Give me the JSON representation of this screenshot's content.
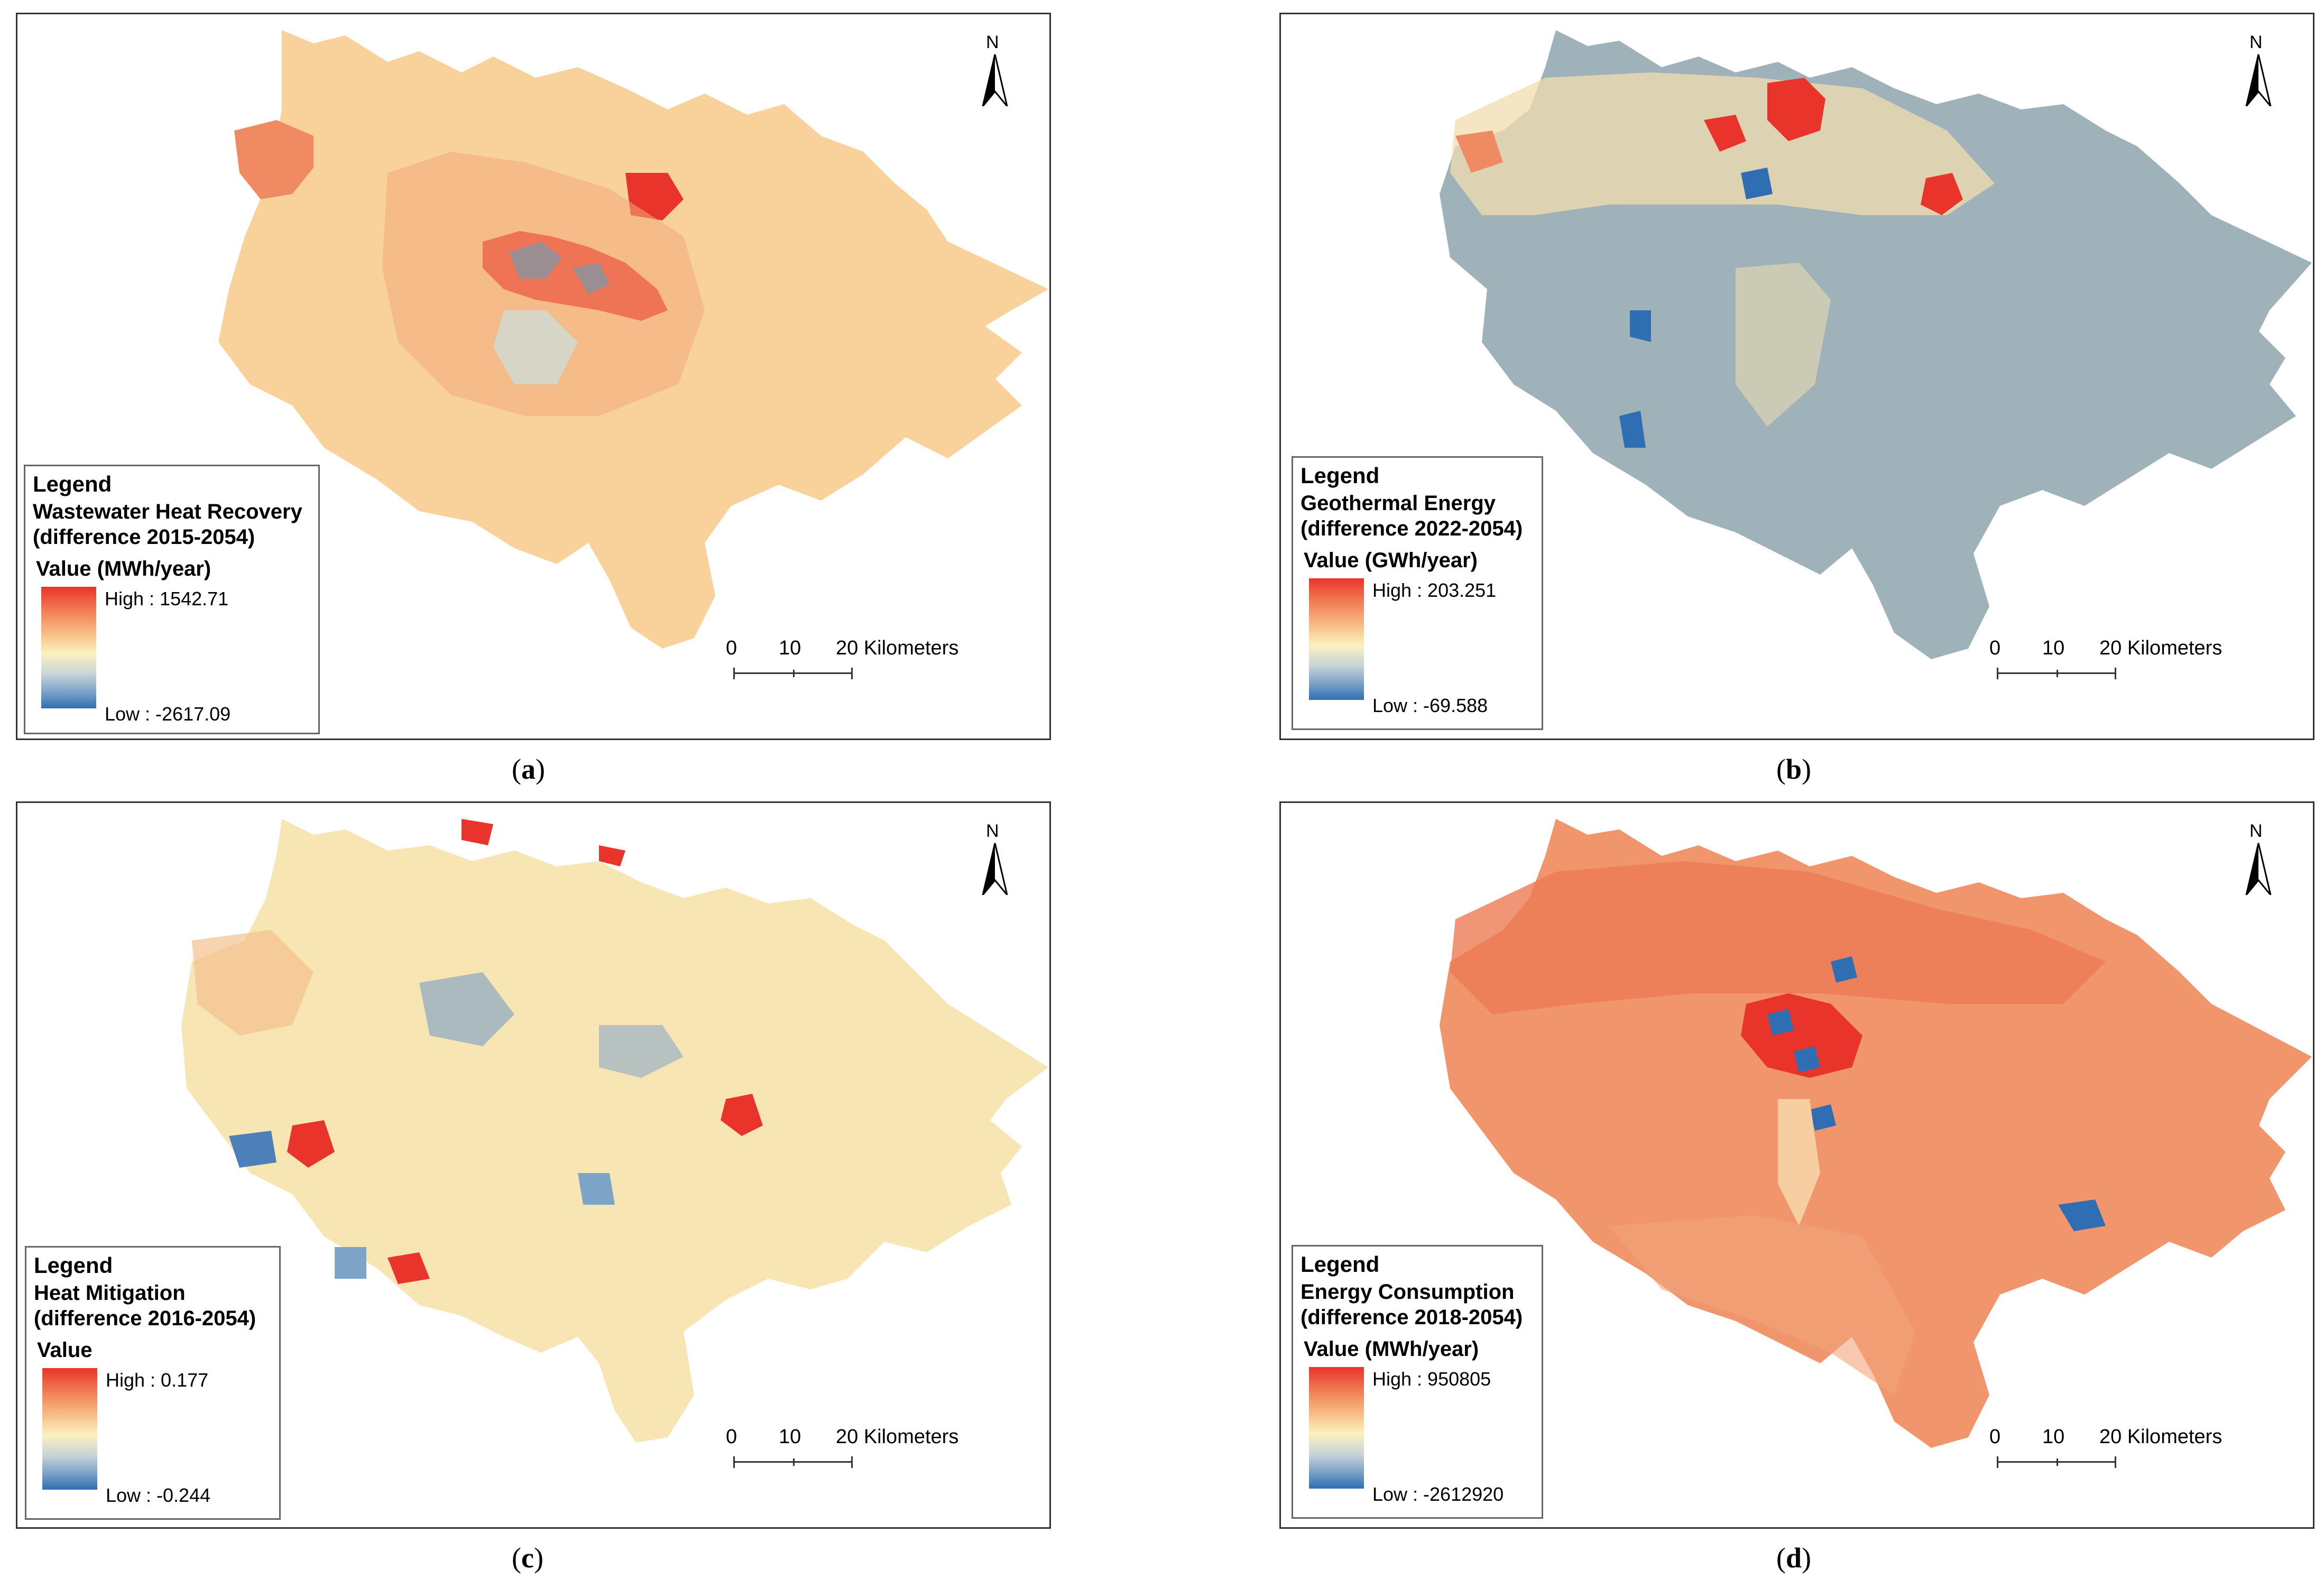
{
  "panels": [
    {
      "caption_letter": "a",
      "legend": {
        "heading": "Legend",
        "title_line1": "Wastewater Heat Recovery",
        "title_line2": "(difference 2015-2054)",
        "unit": "Value (MWh/year)",
        "high": "High : 1542.71",
        "low": "Low : -2617.09"
      },
      "scale": {
        "ticks": [
          "0",
          "10",
          "20 Kilometers"
        ]
      },
      "north_label": "N",
      "dominant_color": "#f9d19b"
    },
    {
      "caption_letter": "b",
      "legend": {
        "heading": "Legend",
        "title_line1": "Geothermal Energy",
        "title_line2": "(difference 2022-2054)",
        "unit": "Value (GWh/year)",
        "high": "High : 203.251",
        "low": "Low : -69.588"
      },
      "scale": {
        "ticks": [
          "0",
          "10",
          "20 Kilometers"
        ]
      },
      "north_label": "N",
      "dominant_color": "#9fb2ba"
    },
    {
      "caption_letter": "c",
      "legend": {
        "heading": "Legend",
        "title_line1": "Heat Mitigation",
        "title_line2": "(difference 2016-2054)",
        "unit": "Value",
        "high": "High : 0.177",
        "low": "Low : -0.244"
      },
      "scale": {
        "ticks": [
          "0",
          "10",
          "20 Kilometers"
        ]
      },
      "north_label": "N",
      "dominant_color": "#f7e6b3"
    },
    {
      "caption_letter": "d",
      "legend": {
        "heading": "Legend",
        "title_line1": "Energy Consumption",
        "title_line2": "(difference 2018-2054)",
        "unit": "Value (MWh/year)",
        "high": "High : 950805",
        "low": "Low : -2612920"
      },
      "scale": {
        "ticks": [
          "0",
          "10",
          "20 Kilometers"
        ]
      },
      "north_label": "N",
      "dominant_color": "#f1956c"
    }
  ],
  "colors": {
    "high": "#e8342a",
    "mid": "#fbf2c0",
    "low": "#2f6eb3"
  }
}
